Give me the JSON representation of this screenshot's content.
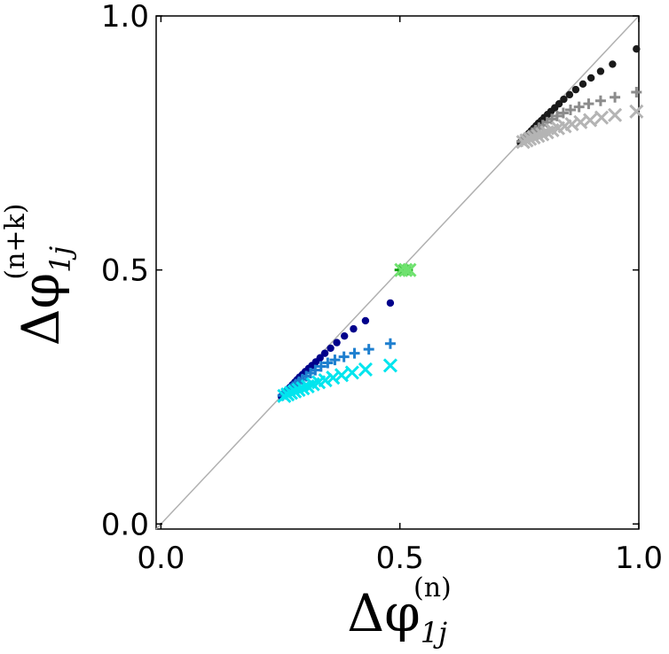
{
  "chart_data": {
    "type": "scatter",
    "title": "",
    "xlabel": {
      "main": "Δφ",
      "sub": "1j",
      "sup": "(n)"
    },
    "ylabel": {
      "main": "Δφ",
      "sub": "1j",
      "sup": "(n+k)"
    },
    "xlim": [
      -0.01,
      1.0
    ],
    "ylim": [
      -0.01,
      1.0
    ],
    "xticks": [
      0.0,
      0.5,
      1.0
    ],
    "yticks": [
      0.0,
      0.5,
      1.0
    ],
    "xtick_labels": [
      "0.0",
      "0.5",
      "1.0"
    ],
    "ytick_labels": [
      "0.0",
      "0.5",
      "1.0"
    ],
    "grid": false,
    "reference_line": {
      "x": [
        -0.01,
        1.0
      ],
      "y": [
        -0.01,
        1.0
      ],
      "color": "#b0b0b0"
    },
    "series": [
      {
        "marker": "dot",
        "color": "#00008b",
        "x": [
          0.252,
          0.255,
          0.258,
          0.262,
          0.266,
          0.27,
          0.275,
          0.28,
          0.285,
          0.29,
          0.296,
          0.302,
          0.309,
          0.316,
          0.324,
          0.333,
          0.343,
          0.355,
          0.368,
          0.384,
          0.403,
          0.428,
          0.48
        ],
        "y": [
          0.251,
          0.254,
          0.257,
          0.261,
          0.265,
          0.269,
          0.274,
          0.279,
          0.284,
          0.289,
          0.294,
          0.3,
          0.306,
          0.312,
          0.319,
          0.327,
          0.336,
          0.346,
          0.357,
          0.37,
          0.384,
          0.4,
          0.435
        ]
      },
      {
        "marker": "plus",
        "color": "#1e7fcf",
        "x": [
          0.255,
          0.26,
          0.265,
          0.27,
          0.276,
          0.282,
          0.289,
          0.296,
          0.304,
          0.313,
          0.323,
          0.335,
          0.349,
          0.364,
          0.383,
          0.405,
          0.435,
          0.48
        ],
        "y": [
          0.253,
          0.257,
          0.261,
          0.265,
          0.27,
          0.275,
          0.28,
          0.285,
          0.291,
          0.297,
          0.303,
          0.31,
          0.317,
          0.323,
          0.329,
          0.336,
          0.344,
          0.355
        ]
      },
      {
        "marker": "x",
        "color": "#00e5ee",
        "x": [
          0.258,
          0.265,
          0.272,
          0.28,
          0.288,
          0.297,
          0.307,
          0.318,
          0.33,
          0.344,
          0.36,
          0.378,
          0.4,
          0.428,
          0.48
        ],
        "y": [
          0.252,
          0.255,
          0.258,
          0.261,
          0.264,
          0.267,
          0.271,
          0.275,
          0.279,
          0.283,
          0.288,
          0.293,
          0.298,
          0.304,
          0.312
        ]
      },
      {
        "marker": "dot",
        "color": "#007a00",
        "x": [
          0.502,
          0.51,
          0.519
        ],
        "y": [
          0.5,
          0.5,
          0.5
        ]
      },
      {
        "marker": "plus",
        "color": "#12a112",
        "x": [
          0.5,
          0.508,
          0.516
        ],
        "y": [
          0.5,
          0.5,
          0.5
        ]
      },
      {
        "marker": "x",
        "color": "#6fe26f",
        "x": [
          0.503,
          0.512,
          0.52
        ],
        "y": [
          0.5,
          0.5,
          0.5
        ]
      },
      {
        "marker": "dot",
        "color": "#1a1a1a",
        "x": [
          0.752,
          0.755,
          0.758,
          0.762,
          0.766,
          0.77,
          0.775,
          0.78,
          0.785,
          0.79,
          0.796,
          0.802,
          0.809,
          0.816,
          0.824,
          0.833,
          0.843,
          0.855,
          0.868,
          0.883,
          0.9,
          0.92,
          0.945,
          0.995
        ],
        "y": [
          0.751,
          0.754,
          0.757,
          0.761,
          0.765,
          0.769,
          0.774,
          0.779,
          0.784,
          0.789,
          0.794,
          0.8,
          0.806,
          0.812,
          0.819,
          0.827,
          0.836,
          0.845,
          0.855,
          0.866,
          0.878,
          0.891,
          0.905,
          0.935
        ]
      },
      {
        "marker": "plus",
        "color": "#8c8c8c",
        "x": [
          0.755,
          0.76,
          0.765,
          0.771,
          0.777,
          0.784,
          0.791,
          0.799,
          0.808,
          0.818,
          0.829,
          0.842,
          0.857,
          0.875,
          0.895,
          0.92,
          0.95,
          0.995
        ],
        "y": [
          0.753,
          0.757,
          0.761,
          0.765,
          0.77,
          0.775,
          0.78,
          0.785,
          0.791,
          0.797,
          0.803,
          0.809,
          0.815,
          0.821,
          0.827,
          0.833,
          0.84,
          0.85
        ]
      },
      {
        "marker": "x",
        "color": "#b4b4b4",
        "x": [
          0.758,
          0.765,
          0.772,
          0.78,
          0.789,
          0.798,
          0.808,
          0.819,
          0.831,
          0.845,
          0.86,
          0.878,
          0.898,
          0.922,
          0.95,
          0.995
        ],
        "y": [
          0.752,
          0.755,
          0.758,
          0.761,
          0.764,
          0.767,
          0.771,
          0.775,
          0.779,
          0.783,
          0.787,
          0.791,
          0.795,
          0.8,
          0.805,
          0.812
        ]
      }
    ]
  }
}
